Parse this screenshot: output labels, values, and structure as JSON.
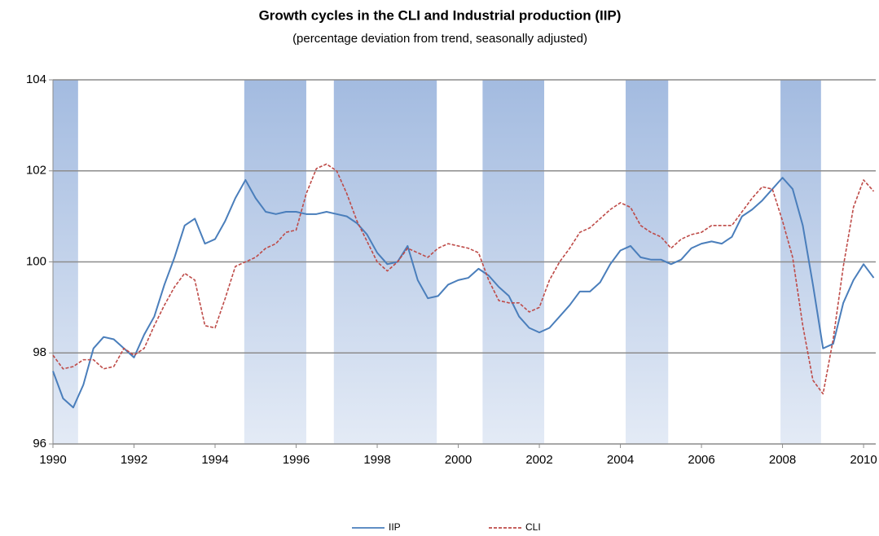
{
  "chart_data": {
    "type": "line",
    "title": "Growth cycles in the CLI and Industrial production (IIP)",
    "subtitle": "(percentage deviation from trend, seasonally adjusted)",
    "x": [
      1990,
      1990.25,
      1990.5,
      1990.75,
      1991,
      1991.25,
      1991.5,
      1991.75,
      1992,
      1992.25,
      1992.5,
      1992.75,
      1993,
      1993.25,
      1993.5,
      1993.75,
      1994,
      1994.25,
      1994.5,
      1994.75,
      1995,
      1995.25,
      1995.5,
      1995.75,
      1996,
      1996.25,
      1996.5,
      1996.75,
      1997,
      1997.25,
      1997.5,
      1997.75,
      1998,
      1998.25,
      1998.5,
      1998.75,
      1999,
      1999.25,
      1999.5,
      1999.75,
      2000,
      2000.25,
      2000.5,
      2000.75,
      2001,
      2001.25,
      2001.5,
      2001.75,
      2002,
      2002.25,
      2002.5,
      2002.75,
      2003,
      2003.25,
      2003.5,
      2003.75,
      2004,
      2004.25,
      2004.5,
      2004.75,
      2005,
      2005.25,
      2005.5,
      2005.75,
      2006,
      2006.25,
      2006.5,
      2006.75,
      2007,
      2007.25,
      2007.5,
      2007.75,
      2008,
      2008.25,
      2008.5,
      2008.75,
      2009,
      2009.25,
      2009.5,
      2009.75,
      2010,
      2010.25
    ],
    "series": [
      {
        "name": "IIP",
        "color": "#4a7ebb",
        "dash": false,
        "values": [
          97.6,
          97.0,
          96.8,
          97.3,
          98.1,
          98.35,
          98.3,
          98.1,
          97.9,
          98.4,
          98.8,
          99.5,
          100.1,
          100.8,
          100.95,
          100.4,
          100.5,
          100.9,
          101.4,
          101.8,
          101.4,
          101.1,
          101.05,
          101.1,
          101.1,
          101.05,
          101.05,
          101.1,
          101.05,
          101.0,
          100.85,
          100.6,
          100.2,
          99.95,
          100.0,
          100.35,
          99.6,
          99.2,
          99.25,
          99.5,
          99.6,
          99.65,
          99.85,
          99.7,
          99.45,
          99.25,
          98.8,
          98.55,
          98.45,
          98.55,
          98.8,
          99.05,
          99.35,
          99.35,
          99.55,
          99.95,
          100.25,
          100.35,
          100.1,
          100.05,
          100.05,
          99.95,
          100.05,
          100.3,
          100.4,
          100.45,
          100.4,
          100.55,
          101.0,
          101.15,
          101.35,
          101.6,
          101.85,
          101.6,
          100.8,
          99.5,
          98.1,
          98.2,
          99.1,
          99.6,
          99.95,
          99.65
        ]
      },
      {
        "name": "CLI",
        "color": "#be4b48",
        "dash": true,
        "values": [
          97.95,
          97.65,
          97.7,
          97.85,
          97.85,
          97.65,
          97.7,
          98.1,
          97.95,
          98.1,
          98.6,
          99.05,
          99.45,
          99.75,
          99.6,
          98.6,
          98.55,
          99.2,
          99.9,
          100.0,
          100.1,
          100.3,
          100.4,
          100.65,
          100.7,
          101.5,
          102.05,
          102.15,
          102.0,
          101.5,
          100.9,
          100.45,
          100.0,
          99.8,
          100.0,
          100.3,
          100.2,
          100.1,
          100.3,
          100.4,
          100.35,
          100.3,
          100.2,
          99.6,
          99.15,
          99.1,
          99.1,
          98.9,
          99.0,
          99.6,
          100.0,
          100.3,
          100.65,
          100.75,
          100.95,
          101.15,
          101.3,
          101.2,
          100.8,
          100.65,
          100.55,
          100.3,
          100.5,
          100.6,
          100.65,
          100.8,
          100.8,
          100.8,
          101.1,
          101.4,
          101.65,
          101.6,
          100.9,
          100.1,
          98.6,
          97.4,
          97.1,
          98.3,
          99.9,
          101.2,
          101.8,
          101.55
        ]
      }
    ],
    "bands": [
      [
        1990.0,
        1990.62
      ],
      [
        1994.72,
        1996.25
      ],
      [
        1996.93,
        1999.47
      ],
      [
        2000.6,
        2002.12
      ],
      [
        2004.13,
        2005.18
      ],
      [
        2007.95,
        2008.95
      ]
    ],
    "band_color": "#a3bbe0",
    "xlim": [
      1990,
      2010.3
    ],
    "xticks": [
      1990,
      1992,
      1994,
      1996,
      1998,
      2000,
      2002,
      2004,
      2006,
      2008,
      2010
    ],
    "ylim": [
      96,
      104
    ],
    "yticks": [
      96,
      98,
      100,
      102,
      104
    ],
    "grid": true,
    "legend": "bottom"
  }
}
